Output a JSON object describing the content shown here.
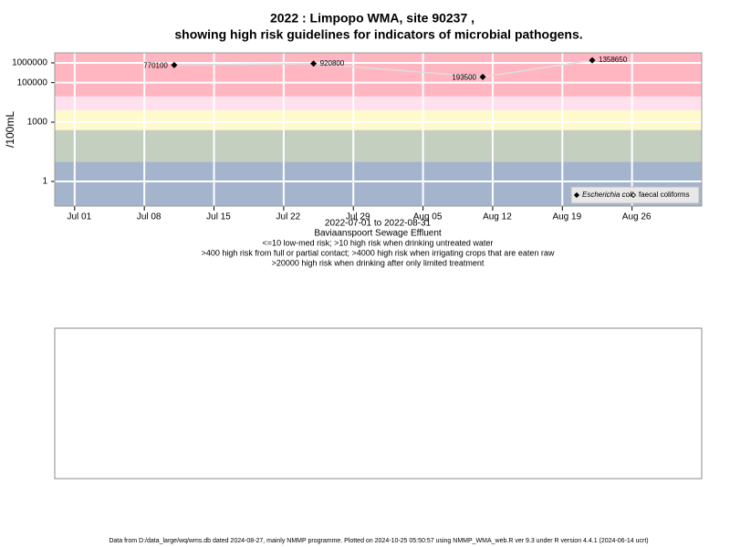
{
  "chart_data": {
    "type": "line",
    "title": "2022 : Limpopo WMA, site 90237 ,",
    "subtitle": "showing high risk guidelines for indicators of microbial pathogens.",
    "ylabel": "/100mL",
    "xlabel_lines": [
      "2022-07-01 to 2022-08-31",
      "Baviaanspoort Sewage Effluent",
      "<=10 low-med risk; >10 high risk when drinking untreated water",
      ">400 high risk from full or partial contact; >4000 high risk when irrigating crops that are eaten raw",
      ">20000 high risk when drinking after only limited treatment"
    ],
    "footer": "Data from D:/data_large/wq/wms.db dated 2024-08-27, mainly NMMP programme. Plotted on 2024-10-25 05:50:57 using NMMP_WMA_web.R ver 9.3 under R version 4.4.1 (2024-06-14 ucrt)",
    "x": [
      "2022-07-11",
      "2022-07-25",
      "2022-08-11",
      "2022-08-22"
    ],
    "series": [
      {
        "name": "Escherichia coli",
        "color": "#000000",
        "line_color": "#dddddd",
        "values": [
          770100,
          920800,
          193500,
          1358650
        ]
      },
      {
        "name": "faecal coliforms",
        "color": "#000000",
        "values": [
          null,
          null,
          null,
          null
        ]
      }
    ],
    "xlim": [
      "2022-06-29",
      "2022-09-02"
    ],
    "xticks": [
      {
        "value": "2022-07-01",
        "label": "Jul 01"
      },
      {
        "value": "2022-07-08",
        "label": "Jul 08"
      },
      {
        "value": "2022-07-15",
        "label": "Jul 15"
      },
      {
        "value": "2022-07-22",
        "label": "Jul 22"
      },
      {
        "value": "2022-07-29",
        "label": "Jul 29"
      },
      {
        "value": "2022-08-05",
        "label": "Aug 05"
      },
      {
        "value": "2022-08-12",
        "label": "Aug 12"
      },
      {
        "value": "2022-08-19",
        "label": "Aug 19"
      },
      {
        "value": "2022-08-26",
        "label": "Aug 26"
      }
    ],
    "ylim": [
      0.057,
      3200000
    ],
    "yticks": [
      1,
      1000,
      100000,
      1000000
    ],
    "log_y": true,
    "grid": true,
    "legend": "bottom right",
    "band_breaks": [
      10,
      400,
      4000,
      20000
    ],
    "band_colors": [
      "#a3b4cc",
      "#c4cfc0",
      "#fffacc",
      "#ffe0ee",
      "#ffb6c1"
    ]
  }
}
